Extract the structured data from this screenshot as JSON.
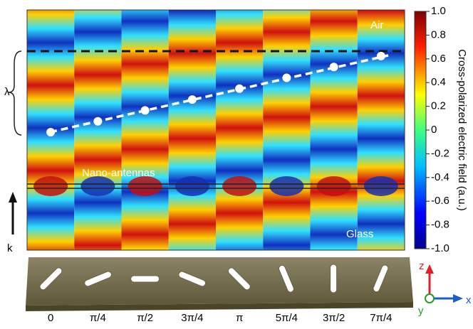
{
  "chart_data": {
    "type": "field-map",
    "labels": {
      "top": "Air",
      "bottom": "Glass",
      "antennas": "Nano-antennas",
      "wavelength": "λ",
      "wavevector": "k"
    },
    "categories": [
      "0",
      "π/4",
      "π/2",
      "3π/4",
      "π",
      "5π/4",
      "3π/2",
      "7π/4"
    ],
    "colorbar": {
      "label": "Cross-polarized electric field (a.u.)",
      "lim": [
        -1,
        1
      ],
      "ticks": [
        {
          "value": 1,
          "label": "1.0"
        },
        0.8,
        0.6,
        0.4,
        0.2,
        0,
        -0.2,
        -0.4,
        -0.6,
        -0.8,
        {
          "value": -1,
          "label": "-1.0"
        }
      ]
    },
    "axes": {
      "z": "z",
      "x": "x",
      "y": "y"
    }
  }
}
